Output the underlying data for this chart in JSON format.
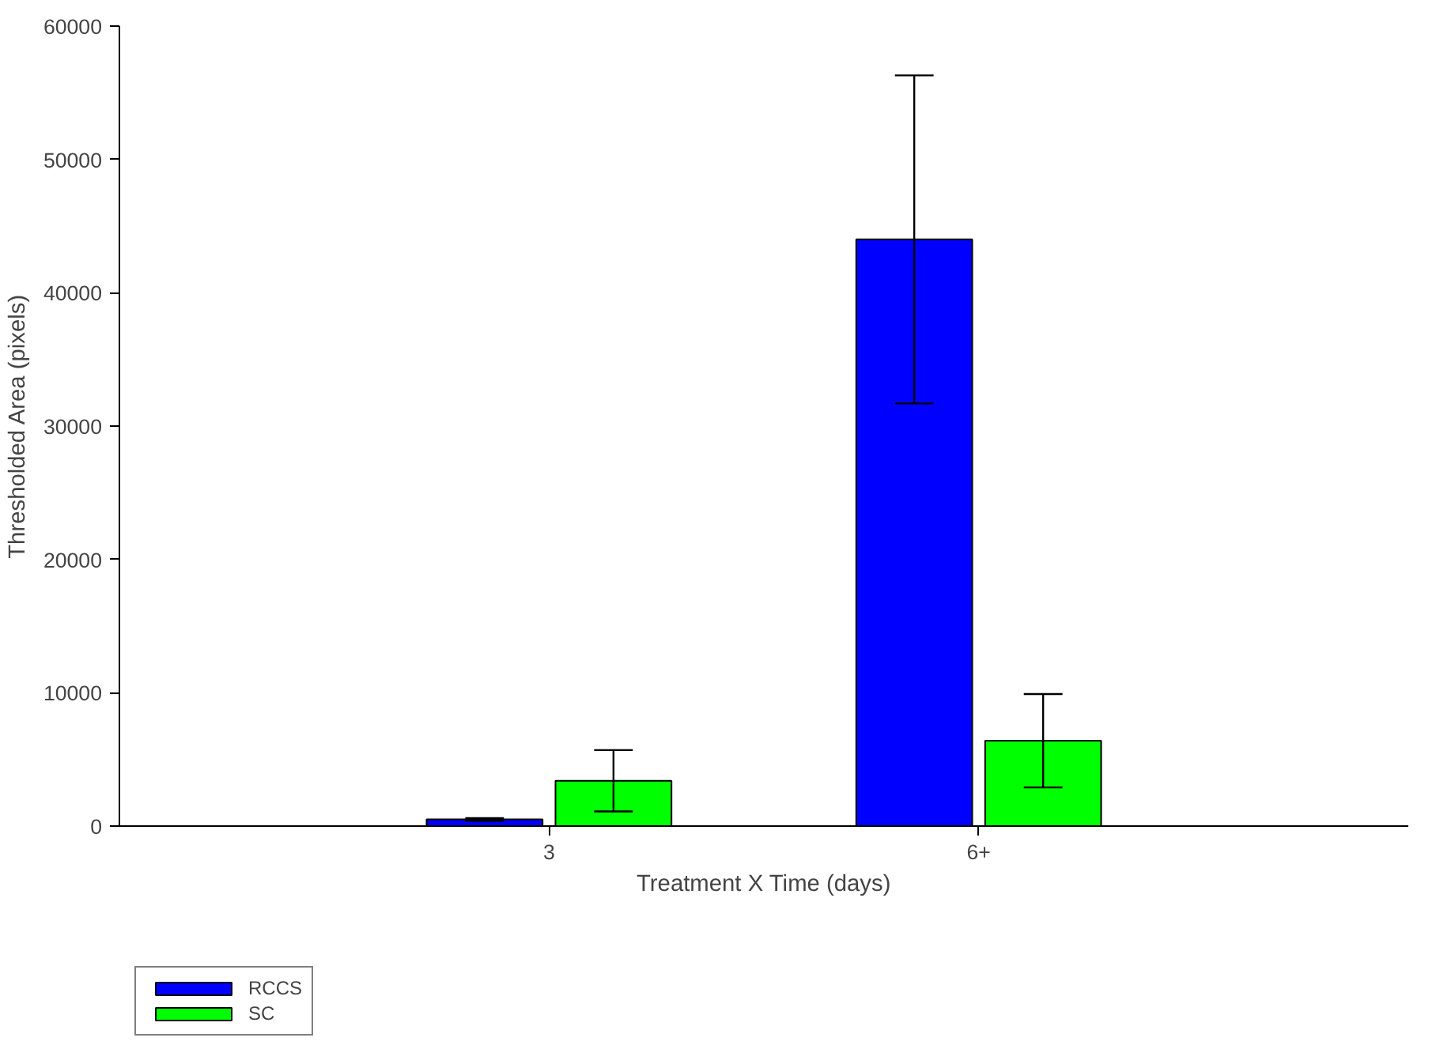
{
  "chart_data": {
    "type": "bar",
    "xlabel": "Treatment X Time (days)",
    "ylabel": "Thresholded Area (pixels)",
    "categories": [
      "3",
      "6+"
    ],
    "series": [
      {
        "name": "RCCS",
        "color": "#0000ff",
        "values": [
          500,
          44000
        ],
        "errors": [
          100,
          12300
        ]
      },
      {
        "name": "SC",
        "color": "#00ff00",
        "values": [
          3400,
          6400
        ],
        "errors": [
          2300,
          3500
        ]
      }
    ],
    "ylim": [
      0,
      60000
    ],
    "yticks": [
      0,
      10000,
      20000,
      30000,
      40000,
      50000,
      60000
    ],
    "grid": false,
    "legend": "bottom left"
  }
}
